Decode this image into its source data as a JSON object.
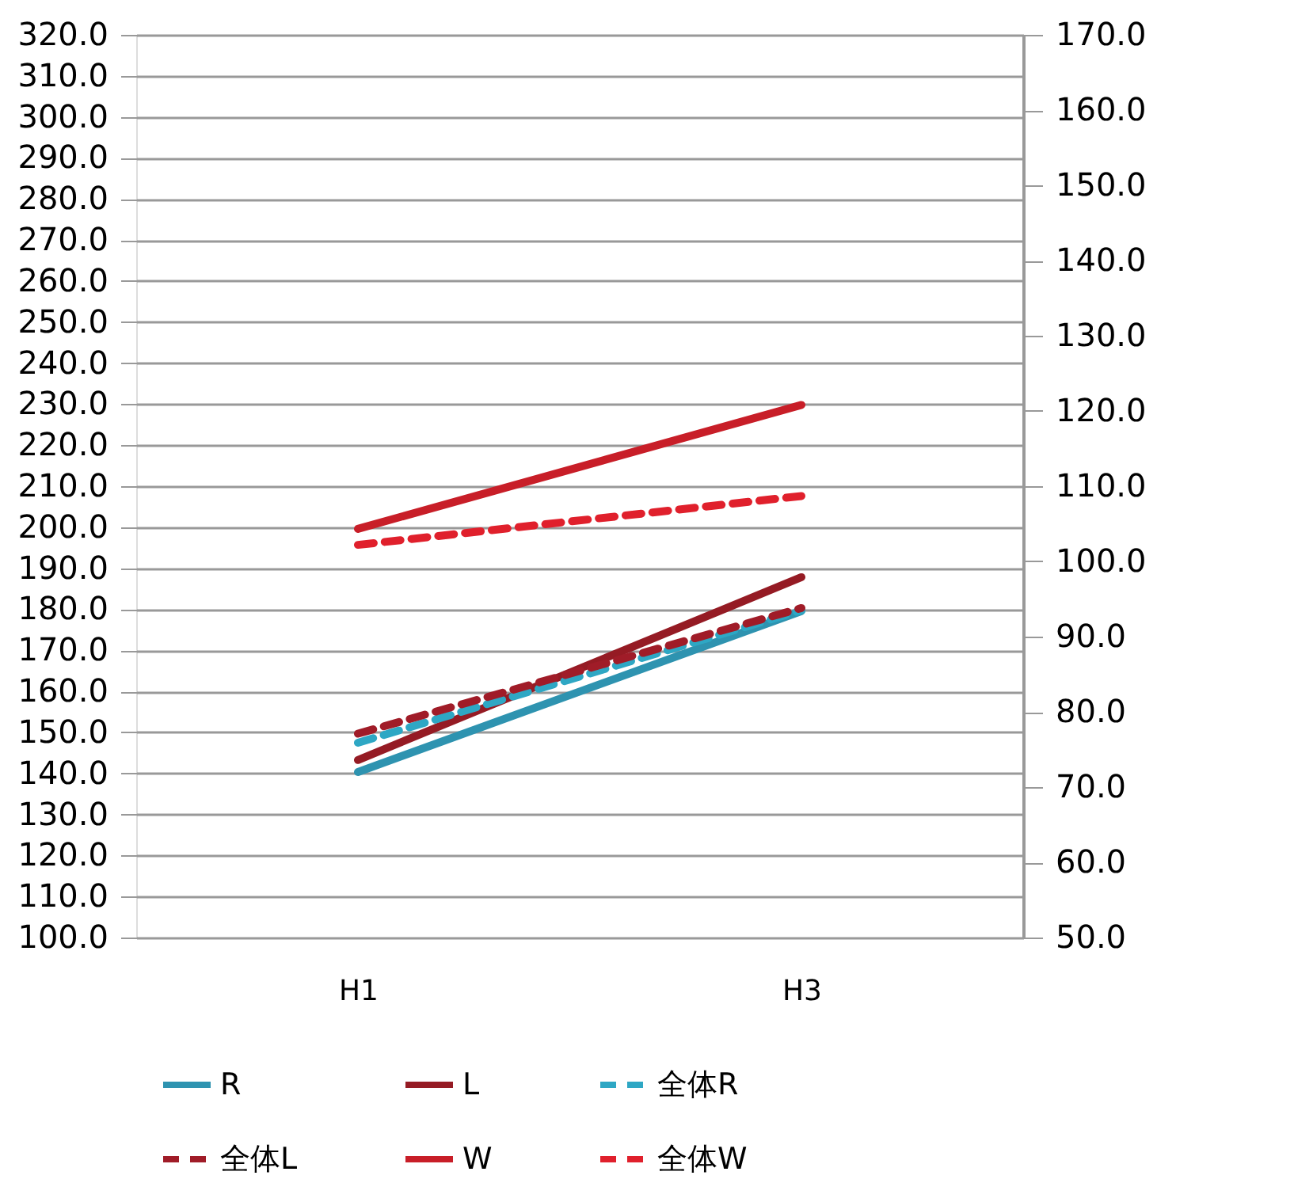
{
  "chart_data": {
    "type": "line",
    "categories": [
      "H1",
      "H3"
    ],
    "series": [
      {
        "name": "R",
        "color": "#2e93b0",
        "values": [
          72.0,
          93.4
        ],
        "axis": "y2",
        "line_style": "solid"
      },
      {
        "name": "L",
        "color": "#951b24",
        "values": [
          73.6,
          97.9
        ],
        "axis": "y2",
        "line_style": "solid"
      },
      {
        "name": "全体R",
        "color": "#2ea7c4",
        "values": [
          75.9,
          93.5
        ],
        "axis": "y2",
        "line_style": "dashed"
      },
      {
        "name": "全体L",
        "color": "#a01c28",
        "values": [
          77.1,
          93.8
        ],
        "axis": "y2",
        "line_style": "dashed"
      },
      {
        "name": "W",
        "color": "#c81e28",
        "values": [
          199.6,
          229.8
        ],
        "line_style": "solid"
      },
      {
        "name": "全体W",
        "color": "#e0202c",
        "values": [
          195.7,
          207.6
        ],
        "line_style": "dashed"
      }
    ],
    "ylim": [
      100,
      320
    ],
    "yticks": [
      {
        "value": 100,
        "label": "100.0"
      },
      {
        "value": 110,
        "label": "110.0"
      },
      {
        "value": 120,
        "label": "120.0"
      },
      {
        "value": 130,
        "label": "130.0"
      },
      {
        "value": 140,
        "label": "140.0"
      },
      {
        "value": 150,
        "label": "150.0"
      },
      {
        "value": 160,
        "label": "160.0"
      },
      {
        "value": 170,
        "label": "170.0"
      },
      {
        "value": 180,
        "label": "180.0"
      },
      {
        "value": 190,
        "label": "190.0"
      },
      {
        "value": 200,
        "label": "200.0"
      },
      {
        "value": 210,
        "label": "210.0"
      },
      {
        "value": 220,
        "label": "220.0"
      },
      {
        "value": 230,
        "label": "230.0"
      },
      {
        "value": 240,
        "label": "240.0"
      },
      {
        "value": 250,
        "label": "250.0"
      },
      {
        "value": 260,
        "label": "260.0"
      },
      {
        "value": 270,
        "label": "270.0"
      },
      {
        "value": 280,
        "label": "280.0"
      },
      {
        "value": 290,
        "label": "290.0"
      },
      {
        "value": 300,
        "label": "300.0"
      },
      {
        "value": 310,
        "label": "310.0"
      },
      {
        "value": 320,
        "label": "320.0"
      }
    ],
    "y2lim": [
      50,
      170
    ],
    "y2ticks": [
      {
        "value": 50,
        "label": "50.0"
      },
      {
        "value": 60,
        "label": "60.0"
      },
      {
        "value": 70,
        "label": "70.0"
      },
      {
        "value": 80,
        "label": "80.0"
      },
      {
        "value": 90,
        "label": "90.0"
      },
      {
        "value": 100,
        "label": "100.0"
      },
      {
        "value": 110,
        "label": "110.0"
      },
      {
        "value": 120,
        "label": "120.0"
      },
      {
        "value": 130,
        "label": "130.0"
      },
      {
        "value": 140,
        "label": "140.0"
      },
      {
        "value": 150,
        "label": "150.0"
      },
      {
        "value": 160,
        "label": "160.0"
      },
      {
        "value": 170,
        "label": "170.0"
      }
    ],
    "grid": "y",
    "legend": "bottom",
    "marker": "none"
  }
}
